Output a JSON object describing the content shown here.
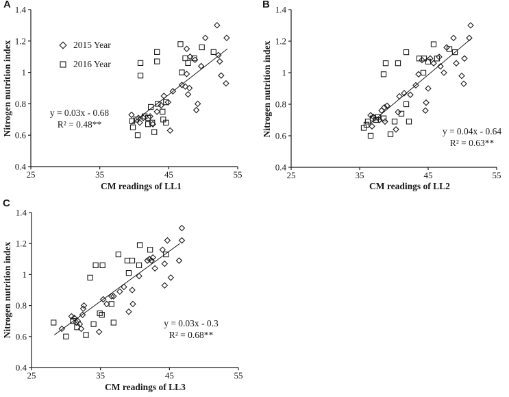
{
  "figure": {
    "background": "#ffffff",
    "ink_color": "#1a1a1a",
    "description_labels": {
      "series_2015": "2015 Year",
      "series_2016": "2016 Year"
    }
  },
  "chart_data": [
    {
      "type": "scatter",
      "panel_label": "A",
      "xlabel": "CM readings of LL1",
      "ylabel": "Nitrogen nutrition index",
      "xlim": [
        25,
        55
      ],
      "ylim": [
        0.4,
        1.4
      ],
      "xticks": [
        "25",
        "35",
        "45",
        "55"
      ],
      "xtick_values": [
        25,
        35,
        45,
        55
      ],
      "yticks": [
        "0.4",
        "0.6",
        "0.8",
        "1",
        "1.2",
        "1.4"
      ],
      "ytick_values": [
        0.4,
        0.6,
        0.8,
        1.0,
        1.2,
        1.4
      ],
      "grid": false,
      "equation": "y = 0.03x - 0.68",
      "r_squared": "R² = 0.48**",
      "trendline": {
        "x1": 39.5,
        "y1": 0.67,
        "x2": 53.5,
        "y2": 1.15
      },
      "legend": {
        "position": "upper-left",
        "visible": true
      },
      "series": [
        {
          "name": "2015 Year",
          "marker": "diamond",
          "points": [
            [
              39.6,
              0.73
            ],
            [
              40.6,
              0.71
            ],
            [
              40.8,
              0.68
            ],
            [
              41.3,
              0.71
            ],
            [
              42.3,
              0.72
            ],
            [
              42.7,
              0.67
            ],
            [
              43.3,
              0.75
            ],
            [
              43.9,
              0.79
            ],
            [
              44.3,
              0.85
            ],
            [
              44.9,
              0.81
            ],
            [
              45.2,
              0.63
            ],
            [
              45.6,
              0.88
            ],
            [
              46.9,
              0.92
            ],
            [
              47.4,
              0.91
            ],
            [
              47.6,
              0.99
            ],
            [
              47.6,
              1.15
            ],
            [
              47.8,
              0.86
            ],
            [
              48.0,
              0.9
            ],
            [
              48.1,
              1.1
            ],
            [
              48.8,
              1.08
            ],
            [
              49.0,
              0.76
            ],
            [
              49.2,
              0.8
            ],
            [
              49.7,
              1.04
            ],
            [
              50.3,
              1.22
            ],
            [
              52.0,
              1.3
            ],
            [
              52.2,
              1.11
            ],
            [
              52.4,
              1.07
            ],
            [
              52.6,
              0.98
            ],
            [
              53.3,
              0.93
            ],
            [
              53.4,
              1.22
            ]
          ]
        },
        {
          "name": "2016 Year",
          "marker": "square",
          "points": [
            [
              39.7,
              0.69
            ],
            [
              39.8,
              0.65
            ],
            [
              40.3,
              0.7
            ],
            [
              40.5,
              0.6
            ],
            [
              40.9,
              0.98
            ],
            [
              40.9,
              1.06
            ],
            [
              41.5,
              0.72
            ],
            [
              42.0,
              0.67
            ],
            [
              42.0,
              0.71
            ],
            [
              42.4,
              0.78
            ],
            [
              42.6,
              0.68
            ],
            [
              42.9,
              0.62
            ],
            [
              43.3,
              1.07
            ],
            [
              43.3,
              1.13
            ],
            [
              43.4,
              0.8
            ],
            [
              44.1,
              0.75
            ],
            [
              44.2,
              0.7
            ],
            [
              44.6,
              0.68
            ],
            [
              44.6,
              0.81
            ],
            [
              46.7,
              1.18
            ],
            [
              46.9,
              1.0
            ],
            [
              47.4,
              1.09
            ],
            [
              47.8,
              1.06
            ],
            [
              48.7,
              1.09
            ],
            [
              49.8,
              1.16
            ],
            [
              51.5,
              1.13
            ]
          ]
        }
      ]
    },
    {
      "type": "scatter",
      "panel_label": "B",
      "xlabel": "CM readings of LL2",
      "ylabel": "Nitrogen nutrition index",
      "xlim": [
        25,
        55
      ],
      "ylim": [
        0.4,
        1.4
      ],
      "xticks": [
        "25",
        "35",
        "45",
        "55"
      ],
      "xtick_values": [
        25,
        35,
        45,
        55
      ],
      "yticks": [
        "0.4",
        "0.6",
        "0.8",
        "1",
        "1.2",
        "1.4"
      ],
      "ytick_values": [
        0.4,
        0.6,
        0.8,
        1.0,
        1.2,
        1.4
      ],
      "grid": false,
      "equation": "y = 0.04x - 0.64",
      "r_squared": "R² = 0.63**",
      "trendline": {
        "x1": 36.6,
        "y1": 0.68,
        "x2": 51.4,
        "y2": 1.22
      },
      "legend": {
        "visible": false
      },
      "series": [
        {
          "name": "2015 Year",
          "marker": "diamond",
          "points": [
            [
              36.6,
              0.73
            ],
            [
              36.8,
              0.66
            ],
            [
              37.0,
              0.72
            ],
            [
              37.9,
              0.7
            ],
            [
              38.2,
              0.76
            ],
            [
              38.6,
              0.78
            ],
            [
              38.7,
              0.69
            ],
            [
              39.0,
              0.79
            ],
            [
              40.3,
              0.64
            ],
            [
              40.6,
              0.75
            ],
            [
              40.8,
              0.85
            ],
            [
              41.5,
              0.87
            ],
            [
              42.4,
              0.86
            ],
            [
              43.2,
              0.92
            ],
            [
              43.6,
              0.99
            ],
            [
              44.1,
              1.08
            ],
            [
              44.6,
              0.76
            ],
            [
              44.7,
              0.81
            ],
            [
              45.0,
              0.9
            ],
            [
              45.3,
              1.09
            ],
            [
              45.8,
              1.06
            ],
            [
              46.6,
              1.1
            ],
            [
              46.8,
              1.04
            ],
            [
              47.3,
              1.0
            ],
            [
              47.7,
              1.16
            ],
            [
              48.7,
              1.22
            ],
            [
              49.1,
              1.06
            ],
            [
              49.9,
              0.98
            ],
            [
              50.2,
              0.93
            ],
            [
              50.3,
              1.09
            ],
            [
              51.0,
              1.22
            ],
            [
              51.2,
              1.3
            ]
          ]
        },
        {
          "name": "2016 Year",
          "marker": "square",
          "points": [
            [
              35.6,
              0.65
            ],
            [
              36.0,
              0.67
            ],
            [
              36.2,
              0.69
            ],
            [
              36.6,
              0.6
            ],
            [
              36.9,
              0.71
            ],
            [
              37.4,
              0.7
            ],
            [
              37.7,
              0.72
            ],
            [
              38.5,
              0.71
            ],
            [
              38.5,
              0.99
            ],
            [
              38.8,
              1.06
            ],
            [
              39.5,
              0.61
            ],
            [
              40.1,
              0.69
            ],
            [
              40.6,
              1.06
            ],
            [
              41.1,
              0.74
            ],
            [
              41.8,
              0.8
            ],
            [
              41.8,
              1.13
            ],
            [
              42.2,
              0.69
            ],
            [
              43.7,
              1.09
            ],
            [
              44.3,
              1.0
            ],
            [
              44.4,
              1.09
            ],
            [
              45.0,
              1.07
            ],
            [
              45.8,
              1.18
            ],
            [
              46.3,
              1.09
            ],
            [
              48.1,
              1.15
            ],
            [
              48.9,
              1.13
            ]
          ]
        }
      ]
    },
    {
      "type": "scatter",
      "panel_label": "C",
      "xlabel": "CM readings of LL3",
      "ylabel": "Nitrogen nutrition index",
      "xlim": [
        25,
        55
      ],
      "ylim": [
        0.4,
        1.4
      ],
      "xticks": [
        "25",
        "35",
        "45",
        "55"
      ],
      "xtick_values": [
        25,
        35,
        45,
        55
      ],
      "yticks": [
        "0.4",
        "0.6",
        "0.8",
        "1",
        "1.2",
        "1.4"
      ],
      "ytick_values": [
        0.4,
        0.6,
        0.8,
        1.0,
        1.2,
        1.4
      ],
      "grid": false,
      "equation": "y = 0.03x - 0.3",
      "r_squared": "R² = 0.68**",
      "trendline": {
        "x1": 28.3,
        "y1": 0.61,
        "x2": 46.5,
        "y2": 1.2
      },
      "legend": {
        "visible": false
      },
      "series": [
        {
          "name": "2015 Year",
          "marker": "diamond",
          "points": [
            [
              29.4,
              0.65
            ],
            [
              30.8,
              0.73
            ],
            [
              31.2,
              0.72
            ],
            [
              31.5,
              0.69
            ],
            [
              31.7,
              0.7
            ],
            [
              32.0,
              0.68
            ],
            [
              32.2,
              0.65
            ],
            [
              32.4,
              0.74
            ],
            [
              32.5,
              0.78
            ],
            [
              32.6,
              0.8
            ],
            [
              34.8,
              0.63
            ],
            [
              35.4,
              0.84
            ],
            [
              35.9,
              0.81
            ],
            [
              36.6,
              0.86
            ],
            [
              36.9,
              0.86
            ],
            [
              37.8,
              0.89
            ],
            [
              38.4,
              0.92
            ],
            [
              39.1,
              0.76
            ],
            [
              39.6,
              0.9
            ],
            [
              39.7,
              0.81
            ],
            [
              40.6,
              0.99
            ],
            [
              41.8,
              1.09
            ],
            [
              42.1,
              1.1
            ],
            [
              42.4,
              1.09
            ],
            [
              42.6,
              1.11
            ],
            [
              42.9,
              1.04
            ],
            [
              44.0,
              1.16
            ],
            [
              44.3,
              0.93
            ],
            [
              44.3,
              1.07
            ],
            [
              44.7,
              1.22
            ],
            [
              45.2,
              0.98
            ],
            [
              46.4,
              1.09
            ],
            [
              46.8,
              1.22
            ],
            [
              46.8,
              1.3
            ]
          ]
        },
        {
          "name": "2016 Year",
          "marker": "square",
          "points": [
            [
              28.2,
              0.69
            ],
            [
              30.0,
              0.6
            ],
            [
              31.0,
              0.7
            ],
            [
              31.6,
              0.66
            ],
            [
              32.9,
              0.61
            ],
            [
              33.5,
              0.98
            ],
            [
              34.0,
              0.68
            ],
            [
              34.3,
              1.06
            ],
            [
              34.9,
              0.75
            ],
            [
              35.2,
              0.74
            ],
            [
              35.3,
              1.06
            ],
            [
              36.6,
              0.81
            ],
            [
              36.9,
              0.69
            ],
            [
              37.6,
              1.13
            ],
            [
              38.9,
              1.09
            ],
            [
              39.1,
              1.01
            ],
            [
              39.6,
              1.09
            ],
            [
              40.6,
              1.06
            ],
            [
              40.7,
              1.19
            ],
            [
              42.2,
              1.16
            ],
            [
              44.5,
              1.13
            ]
          ]
        }
      ]
    }
  ]
}
